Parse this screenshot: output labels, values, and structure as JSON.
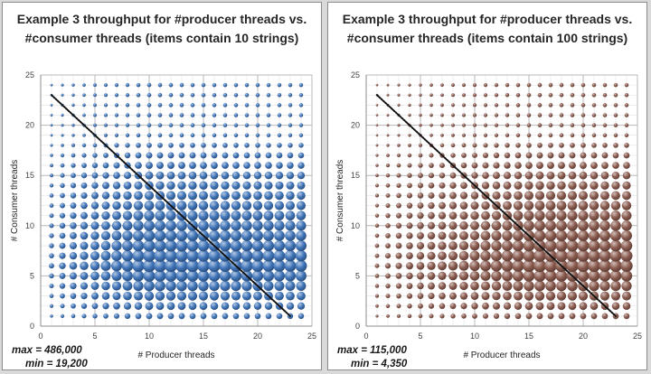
{
  "chart_data": [
    {
      "type": "scatter",
      "title": "Example 3 throughput for #producer threads vs. #consumer threads (items contain 10 strings)",
      "xlabel": "# Producer threads",
      "ylabel": "# Consumer threads",
      "xlim": [
        0,
        25
      ],
      "ylim": [
        0,
        25
      ],
      "xticks": [
        "0",
        "5",
        "10",
        "15",
        "20",
        "25"
      ],
      "yticks": [
        "0",
        "5",
        "10",
        "15",
        "20",
        "25"
      ],
      "grid": true,
      "bubble_color": "#3f74b8",
      "max_label": "max = 486,000",
      "min_label": "min = 19,200",
      "peak": [
        10,
        6
      ],
      "diagonal": {
        "from": [
          1,
          23
        ],
        "to": [
          23,
          1
        ]
      }
    },
    {
      "type": "scatter",
      "title": "Example 3 throughput for #producer threads vs. #consumer threads (items contain 100 strings)",
      "xlabel": "# Producer threads",
      "ylabel": "# Consumer threads",
      "xlim": [
        0,
        25
      ],
      "ylim": [
        0,
        25
      ],
      "xticks": [
        "0",
        "5",
        "10",
        "15",
        "20",
        "25"
      ],
      "yticks": [
        "0",
        "5",
        "10",
        "15",
        "20",
        "25"
      ],
      "grid": true,
      "bubble_color": "#8a5a4e",
      "max_label": "max = 115,000",
      "min_label": "min = 4,350",
      "peak": [
        16,
        6
      ],
      "diagonal": {
        "from": [
          1,
          23
        ],
        "to": [
          23,
          1
        ]
      }
    }
  ]
}
